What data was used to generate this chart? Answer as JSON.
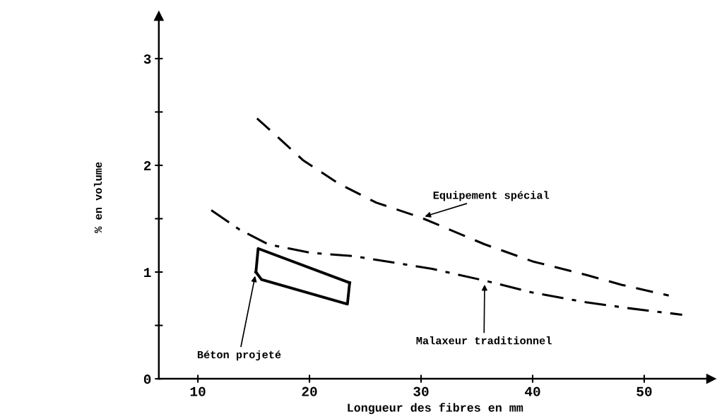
{
  "chart_data": {
    "type": "line",
    "xlabel": "Longueur des fibres en mm",
    "ylabel": "% en volume",
    "xlim": [
      6.5,
      56
    ],
    "ylim": [
      0,
      3.4
    ],
    "xticks": [
      10,
      20,
      30,
      40,
      50
    ],
    "yticks": [
      0,
      {
        "value": 0.5,
        "label": null
      },
      1,
      {
        "value": 1.5,
        "label": null
      },
      2,
      {
        "value": 2.5,
        "label": null
      },
      3
    ],
    "grid": false,
    "marker": "none",
    "series": [
      {
        "name": "Equipement spécial",
        "color": "#000000",
        "line_style": "dashed",
        "x": [
          15.3,
          17,
          19.4,
          22.6,
          26,
          30,
          35.7,
          40,
          44.9,
          48,
          52.2
        ],
        "values": [
          2.44,
          2.28,
          2.05,
          1.83,
          1.65,
          1.51,
          1.26,
          1.1,
          0.97,
          0.88,
          0.78
        ]
      },
      {
        "name": "Malaxeur traditionnel",
        "color": "#000000",
        "line_style": "dashdot",
        "x": [
          11.2,
          13.7,
          16.3,
          20.1,
          23.9,
          31,
          35.7,
          39.9,
          44.6,
          48.7,
          53.4
        ],
        "values": [
          1.58,
          1.4,
          1.26,
          1.18,
          1.15,
          1.03,
          0.92,
          0.81,
          0.72,
          0.66,
          0.6
        ]
      },
      {
        "name": "Béton projeté",
        "color": "#000000",
        "line_style": "solid",
        "x": [
          15.2,
          15.4,
          23.6
        ],
        "values": [
          1.0,
          1.22,
          0.9
        ]
      },
      {
        "color": "#000000",
        "line_style": "solid",
        "x": [
          15.2,
          15.7,
          23.4,
          23.6
        ],
        "values": [
          1.0,
          0.93,
          0.7,
          0.9
        ]
      }
    ]
  }
}
